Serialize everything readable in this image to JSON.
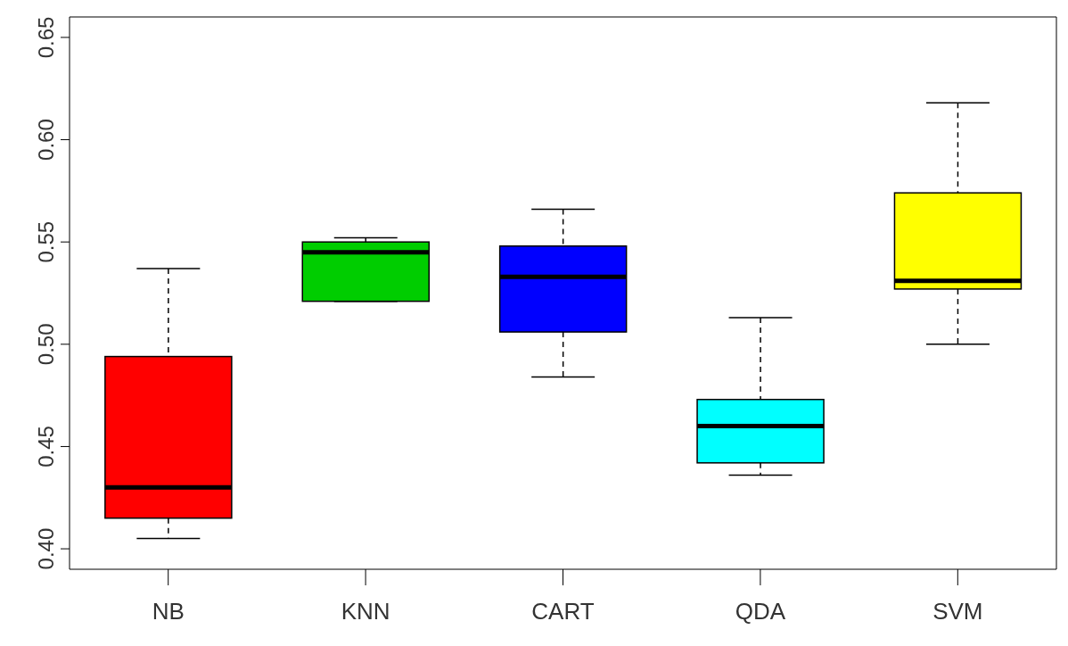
{
  "chart_data": {
    "type": "box",
    "categories": [
      "NB",
      "KNN",
      "CART",
      "QDA",
      "SVM"
    ],
    "colors": [
      "#ff0000",
      "#00cd00",
      "#0000ff",
      "#00ffff",
      "#ffff00"
    ],
    "boxes": [
      {
        "low": 0.405,
        "q1": 0.415,
        "median": 0.43,
        "q3": 0.494,
        "high": 0.537
      },
      {
        "low": 0.521,
        "q1": 0.521,
        "median": 0.545,
        "q3": 0.55,
        "high": 0.552
      },
      {
        "low": 0.484,
        "q1": 0.506,
        "median": 0.533,
        "q3": 0.548,
        "high": 0.566
      },
      {
        "low": 0.436,
        "q1": 0.442,
        "median": 0.46,
        "q3": 0.473,
        "high": 0.513
      },
      {
        "low": 0.5,
        "q1": 0.527,
        "median": 0.531,
        "q3": 0.574,
        "high": 0.618
      }
    ],
    "ylim": [
      0.39,
      0.66
    ],
    "yticks": [
      {
        "value": 0.4,
        "label": "0.40"
      },
      {
        "value": 0.45,
        "label": "0.45"
      },
      {
        "value": 0.5,
        "label": "0.50"
      },
      {
        "value": 0.55,
        "label": "0.55"
      },
      {
        "value": 0.6,
        "label": "0.60"
      },
      {
        "value": 0.65,
        "label": "0.65"
      }
    ],
    "grid": false,
    "legend": false
  }
}
